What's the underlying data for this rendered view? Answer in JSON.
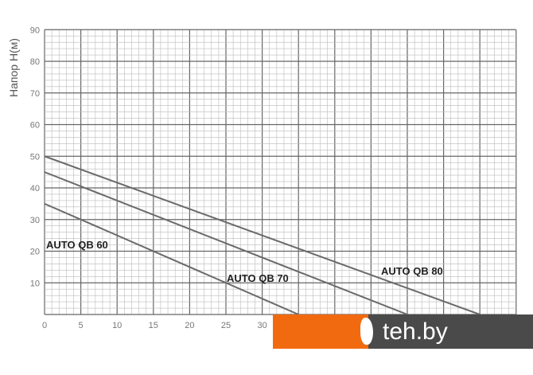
{
  "chart_data": {
    "type": "line",
    "ylabel": "Напор Н(м)",
    "xlabel": "",
    "xlim": [
      0,
      65
    ],
    "ylim": [
      0,
      90
    ],
    "xticks": [
      0,
      5,
      10,
      15,
      20,
      25,
      30
    ],
    "yticks": [
      10,
      20,
      30,
      40,
      50,
      60,
      70,
      80,
      90
    ],
    "grid": true,
    "series": [
      {
        "name": "AUTO QB 60",
        "x": [
          0,
          35
        ],
        "y": [
          35,
          0
        ]
      },
      {
        "name": "AUTO QB 70",
        "x": [
          0,
          50
        ],
        "y": [
          45,
          0
        ]
      },
      {
        "name": "AUTO QB 80",
        "x": [
          0,
          60
        ],
        "y": [
          50,
          0
        ]
      }
    ],
    "line_color": "#6a6a6a"
  },
  "watermark": {
    "text": "1teh.by",
    "orange": "#f26a10",
    "dark": "#4a4a4a"
  }
}
